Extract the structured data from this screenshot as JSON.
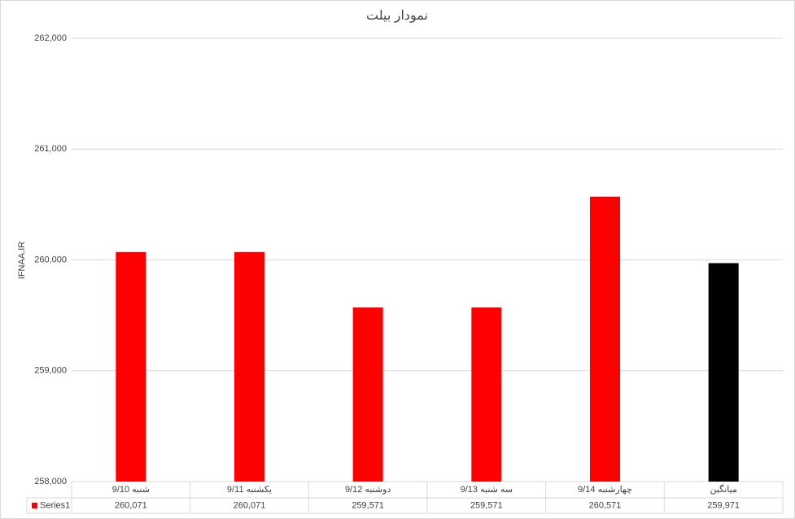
{
  "chart_data": {
    "type": "bar",
    "title": "نمودار بیلت",
    "y_label": "IFNAA.IR",
    "categories": [
      "شنبه 9/10",
      "یکشنبه 9/11",
      "دوشنبه 9/12",
      "سه شنبه 9/13",
      "چهارشنبه 9/14",
      "میانگین"
    ],
    "series": [
      {
        "name": "Series1",
        "color": "#ff0000",
        "colors": [
          "#ff0000",
          "#ff0000",
          "#ff0000",
          "#ff0000",
          "#ff0000",
          "#000000"
        ],
        "values": [
          260071,
          260071,
          259571,
          259571,
          260571,
          259971
        ],
        "value_labels": [
          "260,071",
          "260,071",
          "259,571",
          "259,571",
          "260,571",
          "259,971"
        ]
      }
    ],
    "ylim": [
      258000,
      262000
    ],
    "yticks": [
      {
        "value": 258000,
        "label": "258,000"
      },
      {
        "value": 259000,
        "label": "259,000"
      },
      {
        "value": 260000,
        "label": "260,000"
      },
      {
        "value": 261000,
        "label": "261,000"
      },
      {
        "value": 262000,
        "label": "262,000"
      }
    ],
    "grid": true
  }
}
